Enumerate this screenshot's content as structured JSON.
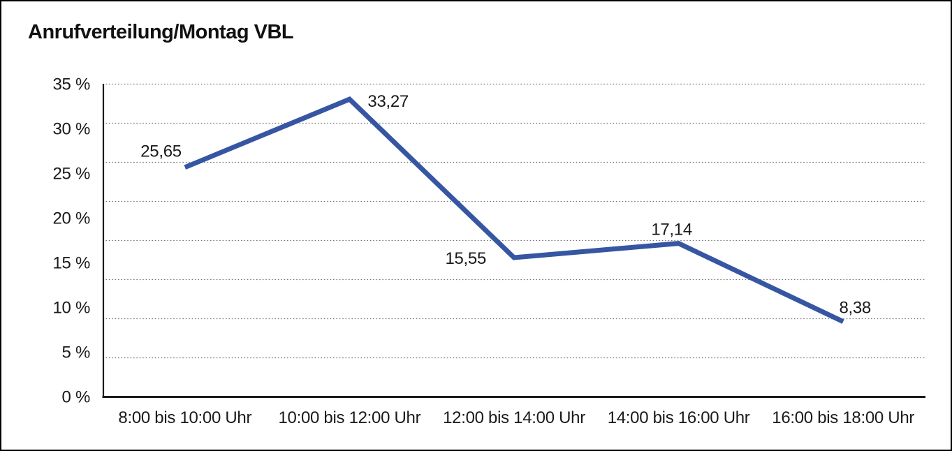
{
  "title": "Anrufverteilung/Montag VBL",
  "chart_data": {
    "type": "line",
    "title": "Anrufverteilung/Montag VBL",
    "categories": [
      "8:00 bis 10:00 Uhr",
      "10:00 bis 12:00 Uhr",
      "12:00 bis 14:00 Uhr",
      "14:00 bis 16:00 Uhr",
      "16:00 bis 18:00 Uhr"
    ],
    "values": [
      25.65,
      33.27,
      15.55,
      17.14,
      8.38
    ],
    "value_labels": [
      "25,65",
      "33,27",
      "15,55",
      "17,14",
      "8,38"
    ],
    "y_tick_labels": [
      "0 %",
      "5 %",
      "10 %",
      "15 %",
      "20 %",
      "25 %",
      "30 %",
      "35 %"
    ],
    "y_tick_step": 5,
    "ylim": [
      0,
      35
    ],
    "xlabel": "",
    "ylabel": "",
    "legend": "none",
    "grid": "horizontal-dotted",
    "grid_divisions": 8,
    "line_color": "#3656A3",
    "axis_color": "#1a1a1a",
    "grid_color": "#737373",
    "text_color": "#1a1a1a",
    "background_color": "#ffffff"
  }
}
